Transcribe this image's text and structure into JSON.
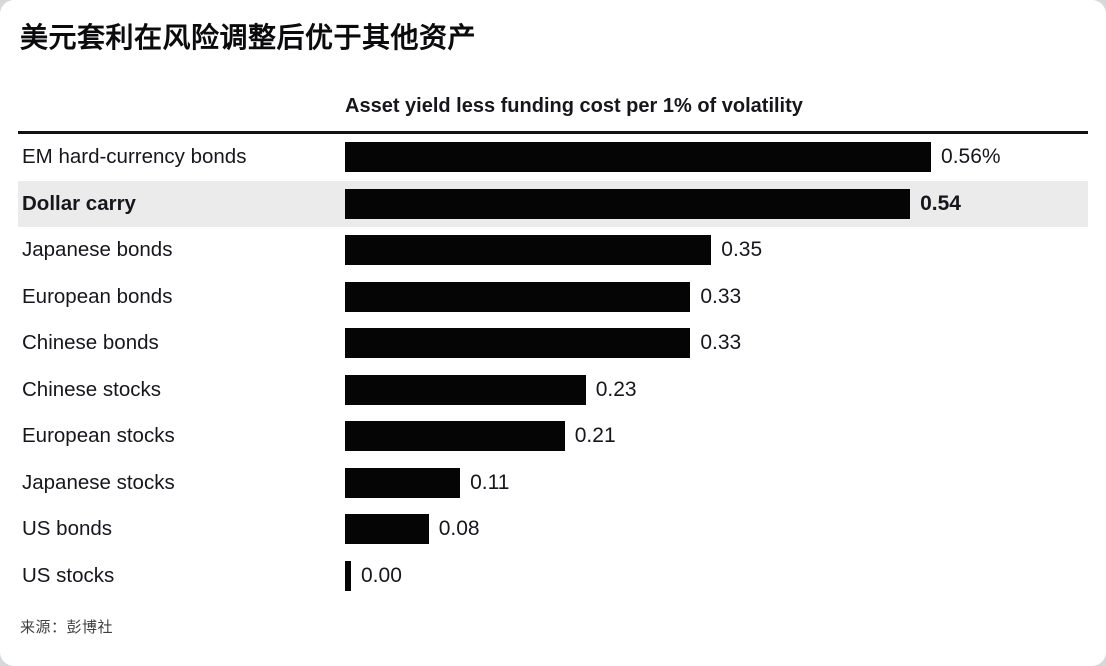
{
  "header": {
    "title": "美元套利在风险调整后优于其他资产",
    "subtitle": "Asset yield less funding cost per 1% of volatility"
  },
  "chart_data": {
    "type": "bar",
    "orientation": "horizontal",
    "title": "美元套利在风险调整后优于其他资产",
    "subtitle": "Asset yield less funding cost per 1% of volatility",
    "categories": [
      "EM hard-currency bonds",
      "Dollar carry",
      "Japanese bonds",
      "European bonds",
      "Chinese bonds",
      "Chinese stocks",
      "European stocks",
      "Japanese stocks",
      "US bonds",
      "US stocks"
    ],
    "values": [
      0.56,
      0.54,
      0.35,
      0.33,
      0.33,
      0.23,
      0.21,
      0.11,
      0.08,
      0.0
    ],
    "value_labels": [
      "0.56%",
      "0.54",
      "0.35",
      "0.33",
      "0.33",
      "0.23",
      "0.21",
      "0.11",
      "0.08",
      "0.00"
    ],
    "highlighted_category": "Dollar carry",
    "bar_color": "#050506",
    "highlight_bg": "#ebebeb",
    "xlim": [
      0,
      0.71
    ],
    "grid": false,
    "legend": false
  },
  "footer": {
    "source": "来源：彭博社"
  }
}
